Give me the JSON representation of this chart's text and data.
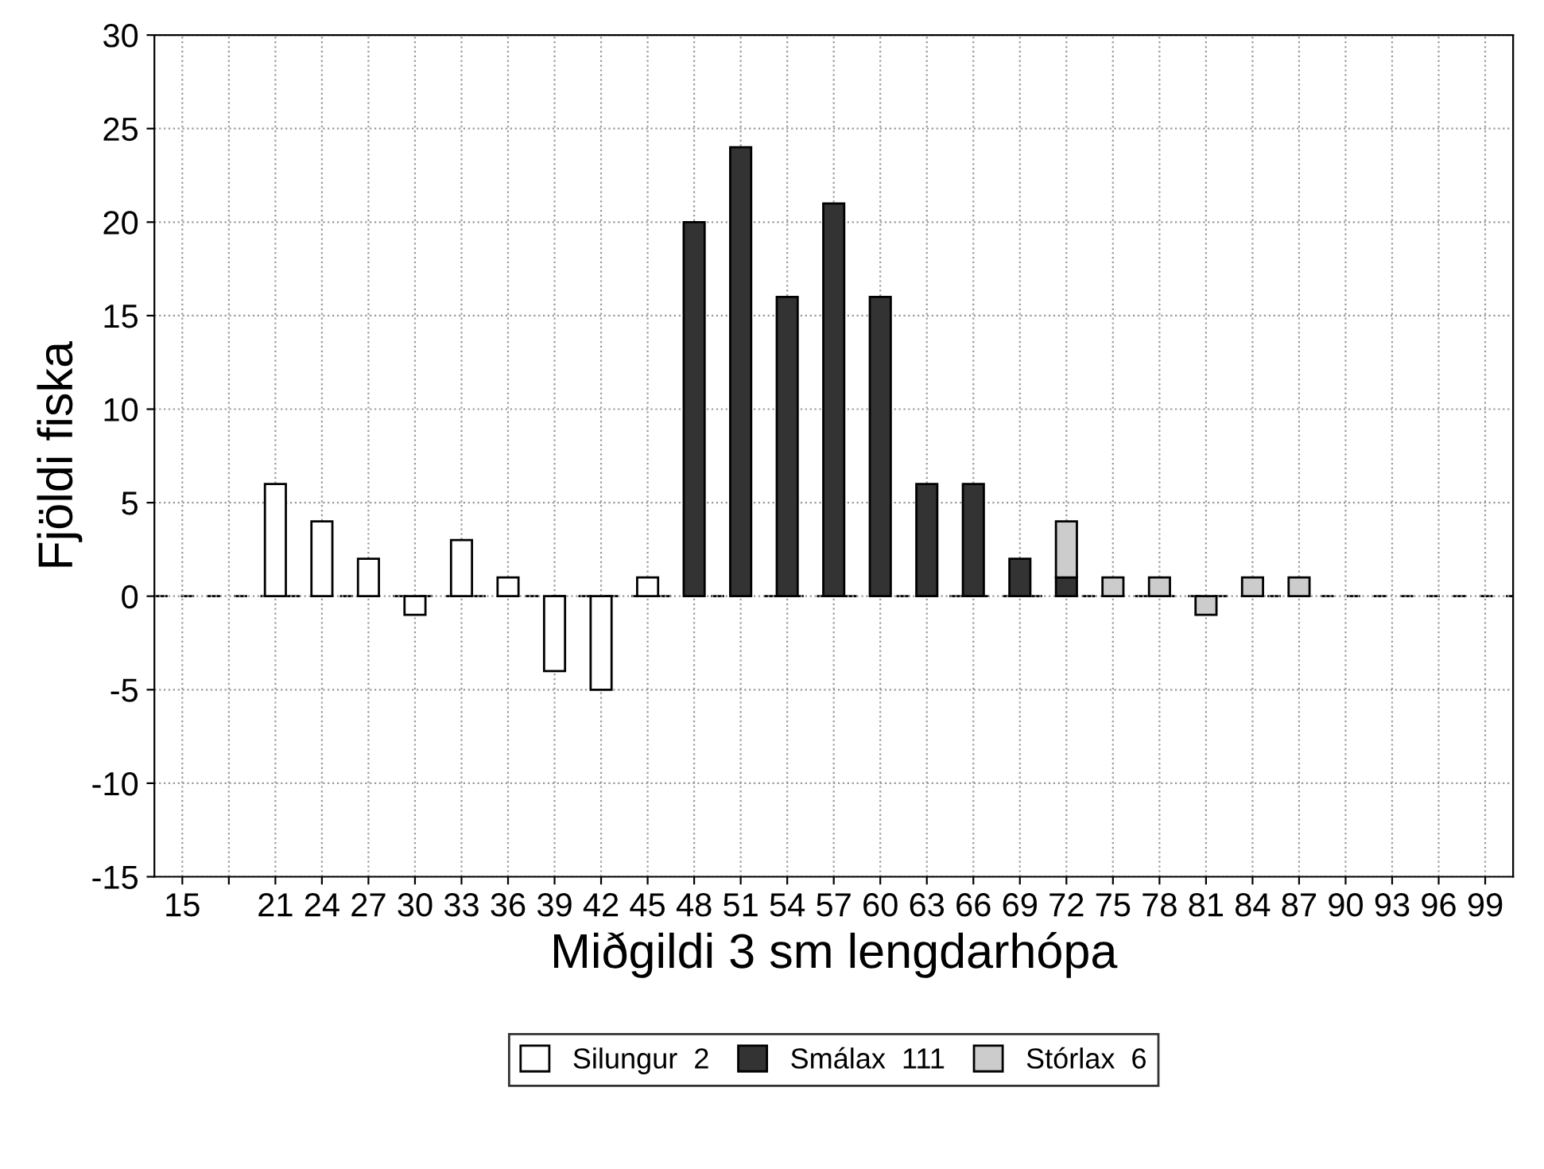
{
  "chart_data": {
    "type": "bar",
    "stacked": true,
    "xlabel": "Miðgildi 3 sm lengdarhópa",
    "ylabel": "Fjöldi fiska",
    "categories": [
      "15",
      null,
      "21",
      "24",
      "27",
      "30",
      "33",
      "36",
      "39",
      "42",
      "45",
      "48",
      "51",
      "54",
      "57",
      "60",
      "63",
      "66",
      "69",
      "72",
      "75",
      "78",
      "81",
      "84",
      "87",
      "90",
      "93",
      "96",
      "99"
    ],
    "series": [
      {
        "name": "Silungur  2",
        "color": "#ffffff",
        "values": [
          null,
          null,
          6,
          4,
          2,
          -1,
          3,
          1,
          -4,
          -5,
          1,
          null,
          null,
          null,
          null,
          null,
          null,
          null,
          null,
          null,
          null,
          null,
          null,
          null,
          null,
          null,
          null,
          null,
          null
        ]
      },
      {
        "name": "Smálax  111",
        "color": "#333333",
        "values": [
          null,
          null,
          null,
          null,
          null,
          null,
          null,
          null,
          null,
          null,
          null,
          20,
          24,
          16,
          21,
          16,
          6,
          6,
          2,
          1,
          null,
          null,
          null,
          null,
          null,
          null,
          null,
          null,
          null
        ]
      },
      {
        "name": "Stórlax  6",
        "color": "#cccccc",
        "values": [
          null,
          null,
          null,
          null,
          null,
          null,
          null,
          null,
          null,
          null,
          null,
          null,
          null,
          null,
          null,
          null,
          null,
          null,
          null,
          3,
          1,
          1,
          -1,
          1,
          1,
          null,
          null,
          null,
          null
        ]
      }
    ],
    "ylim": [
      -15,
      30
    ],
    "yticks": [
      -15,
      -10,
      -5,
      0,
      5,
      10,
      15,
      20,
      25,
      30
    ],
    "ref_lines": [
      {
        "axis": "y",
        "value": 0,
        "color": "#000000",
        "line_style": "dashed"
      }
    ],
    "grid": true,
    "legend": "bottom"
  }
}
